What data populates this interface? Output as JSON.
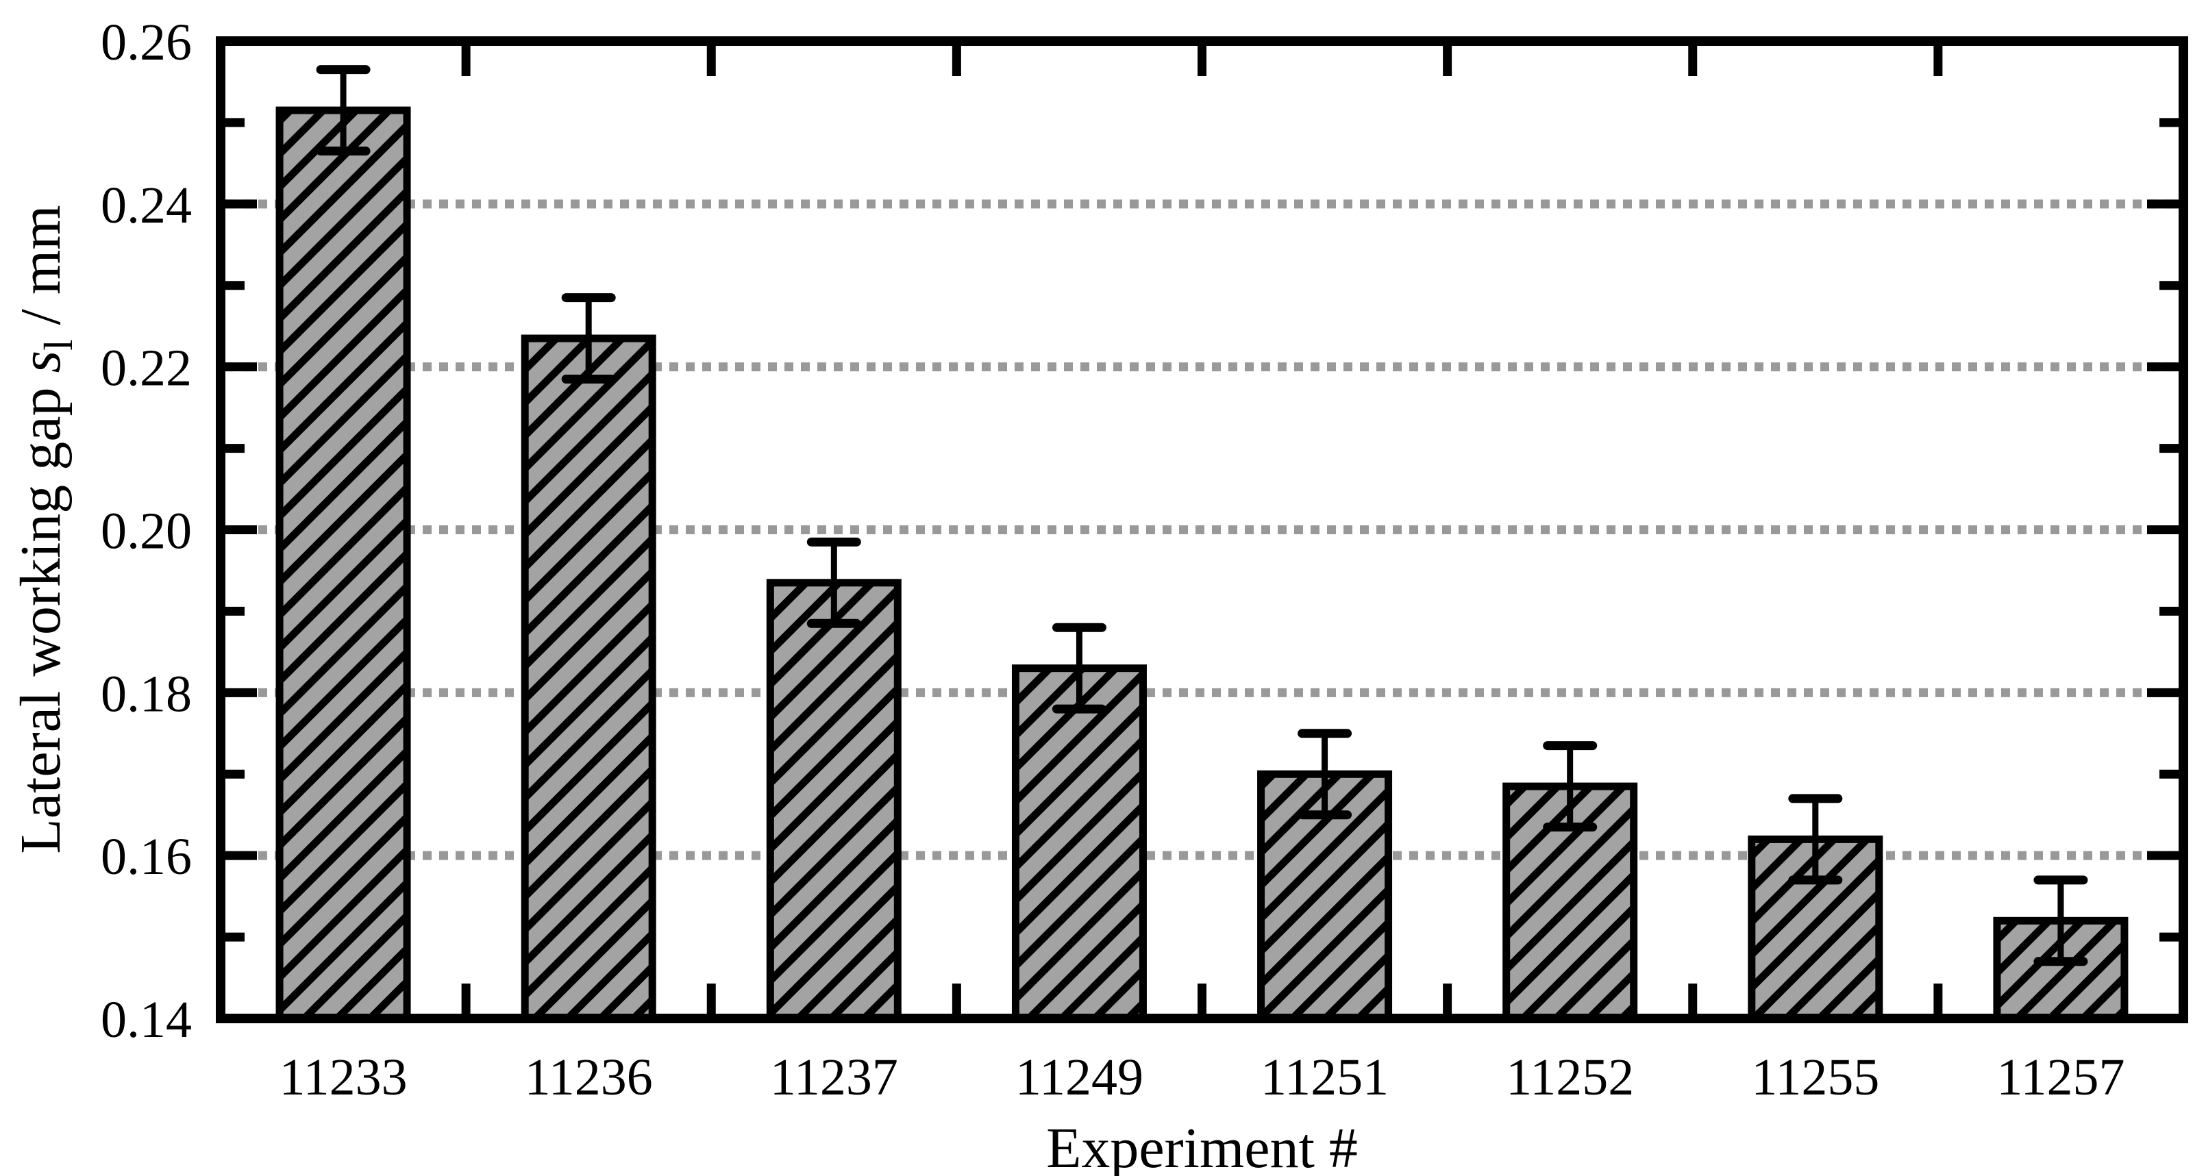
{
  "figure": {
    "background": "#ffffff"
  },
  "labels": {
    "x_title": "Experiment #",
    "y_prefix": "Lateral working gap ",
    "y_symbol": "s",
    "y_symbol_sub": "l",
    "y_suffix": " / mm"
  },
  "chart_data": {
    "type": "bar",
    "title": "",
    "xlabel": "Experiment #",
    "ylabel": "Lateral working gap s_l / mm",
    "categories": [
      "11233",
      "11236",
      "11237",
      "11249",
      "11251",
      "11252",
      "11255",
      "11257"
    ],
    "values": [
      0.2515,
      0.2235,
      0.1935,
      0.183,
      0.17,
      0.1685,
      0.162,
      0.152
    ],
    "errors": [
      0.005,
      0.005,
      0.005,
      0.005,
      0.005,
      0.005,
      0.005,
      0.005
    ],
    "ylim": [
      0.14,
      0.26
    ],
    "y_tick_labels": [
      "0.14",
      "0.16",
      "0.18",
      "0.20",
      "0.22",
      "0.24",
      "0.26"
    ],
    "y_major_tick_step": 0.02,
    "y_minor_tick_step": 0.01,
    "grid": {
      "horizontal_at": [
        0.16,
        0.18,
        0.2,
        0.22,
        0.24
      ],
      "style": "dotted",
      "color": "#999999"
    },
    "legend": "none",
    "style": {
      "bar_fill": "#a3a3a3",
      "bar_hatch": "forward-diagonal-black",
      "bar_edge": "#000000",
      "axis_color": "#000000",
      "error_bar_color": "#000000"
    }
  }
}
